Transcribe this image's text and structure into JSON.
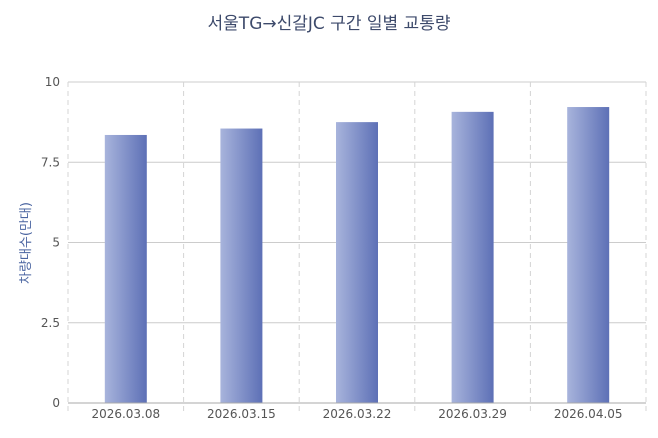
{
  "chart_data": {
    "type": "bar",
    "title": "서울TG→신갈JC 구간 일별 교통량",
    "xlabel": "",
    "ylabel": "차량대수(만대)",
    "categories": [
      "2026.03.08",
      "2026.03.15",
      "2026.03.22",
      "2026.03.29",
      "2026.04.05"
    ],
    "values": [
      8.35,
      8.55,
      8.75,
      9.07,
      9.22
    ],
    "ylim": [
      0,
      10
    ],
    "yticks": [
      "0",
      "2.5",
      "5",
      "7.5",
      "10"
    ],
    "grid": true,
    "legend": "none",
    "colors": {
      "bar_light": "#a8b4dc",
      "bar_dark": "#5d70b6",
      "grid_solid": "#cccccc",
      "grid_dashed": "#d4d4d4",
      "axis": "#aaaaaa",
      "title": "#3d4a6b",
      "ylabel": "#4a64a0"
    }
  }
}
